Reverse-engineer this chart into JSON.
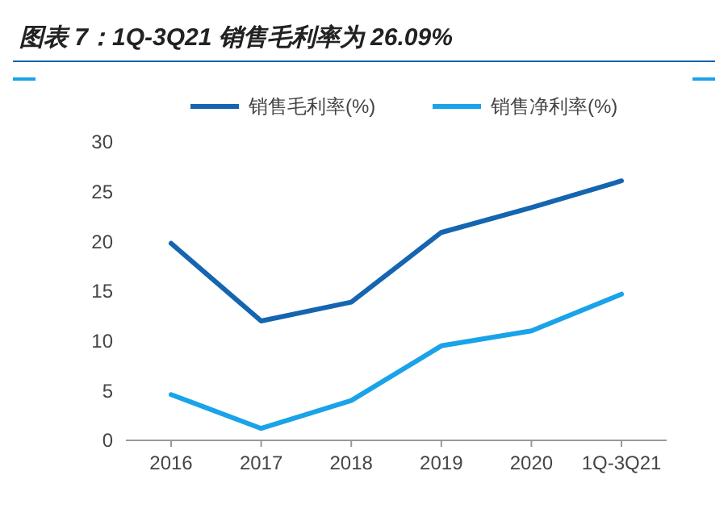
{
  "chart_data": {
    "type": "line",
    "title": "图表 7：1Q-3Q21 销售毛利率为 26.09%",
    "categories": [
      "2016",
      "2017",
      "2018",
      "2019",
      "2020",
      "1Q-3Q21"
    ],
    "series": [
      {
        "name": "销售毛利率(%)",
        "color": "#1565b0",
        "values": [
          19.8,
          12.0,
          13.9,
          20.9,
          23.4,
          26.09
        ]
      },
      {
        "name": "销售净利率(%)",
        "color": "#1aa3e8",
        "values": [
          4.6,
          1.2,
          4.0,
          9.5,
          11.0,
          14.7
        ]
      }
    ],
    "ylim": [
      0,
      30
    ],
    "yticks": [
      0,
      5,
      10,
      15,
      20,
      25,
      30
    ],
    "grid": false,
    "legend": "top",
    "marker": "none",
    "line_style": "solid"
  }
}
